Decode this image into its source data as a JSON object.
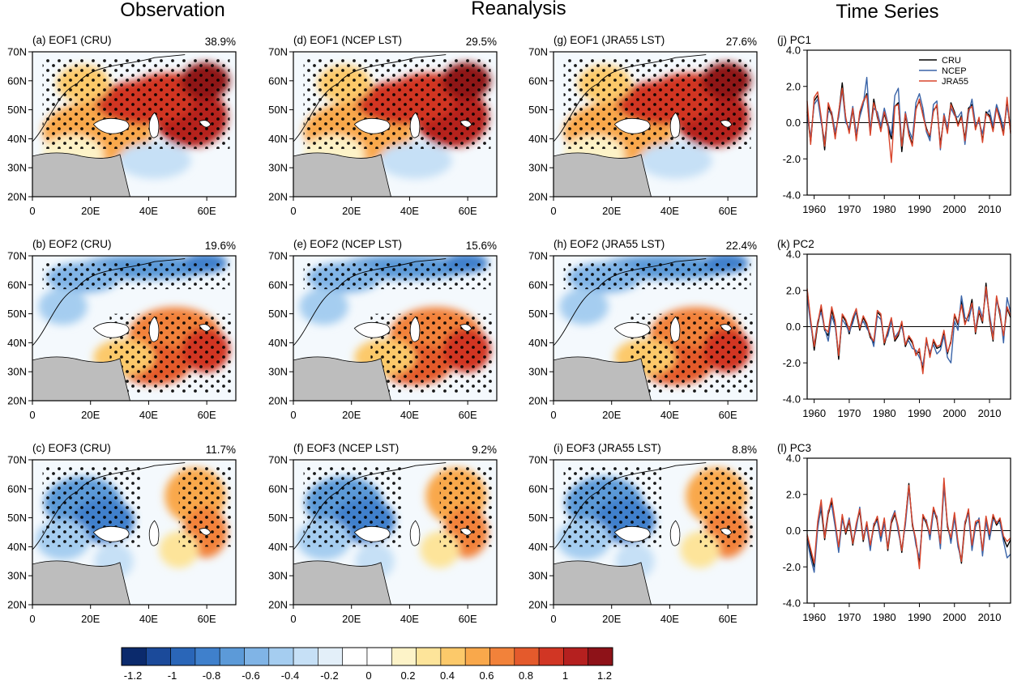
{
  "figure": {
    "column_titles": [
      "Observation",
      "Reanalysis",
      "Time Series"
    ]
  },
  "colorbar": {
    "colors": [
      "#0b2a6c",
      "#1b4a9a",
      "#2a66b8",
      "#3f80cc",
      "#5c9ad8",
      "#80b4e6",
      "#a5cdf0",
      "#c6e0f6",
      "#e3eff9",
      "#ffffff",
      "#ffffff",
      "#fdf3c8",
      "#fde49a",
      "#fcc96a",
      "#f9a84b",
      "#f2823a",
      "#e45a2c",
      "#d13624",
      "#b5201f",
      "#8e1218"
    ],
    "labels": [
      "-1.2",
      "-1",
      "-0.8",
      "-0.6",
      "-0.4",
      "-0.2",
      "0",
      "0.2",
      "0.4",
      "0.6",
      "0.8",
      "1",
      "1.2"
    ]
  },
  "map_axes": {
    "lat_labels": [
      "70N",
      "60N",
      "50N",
      "40N",
      "30N",
      "20N"
    ],
    "lon_labels": [
      "0",
      "20E",
      "40E",
      "60E"
    ]
  },
  "map_panels": [
    {
      "id": "a",
      "title": "(a) EOF1 (CRU)",
      "variance": "38.9%",
      "pattern": "eof1"
    },
    {
      "id": "d",
      "title": "(d) EOF1 (NCEP LST)",
      "variance": "29.5%",
      "pattern": "eof1"
    },
    {
      "id": "g",
      "title": "(g) EOF1 (JRA55 LST)",
      "variance": "27.6%",
      "pattern": "eof1"
    },
    {
      "id": "b",
      "title": "(b) EOF2 (CRU)",
      "variance": "19.6%",
      "pattern": "eof2"
    },
    {
      "id": "e",
      "title": "(e) EOF2 (NCEP LST)",
      "variance": "15.6%",
      "pattern": "eof2"
    },
    {
      "id": "h",
      "title": "(h) EOF2 (JRA55 LST)",
      "variance": "22.4%",
      "pattern": "eof2"
    },
    {
      "id": "c",
      "title": "(c) EOF3 (CRU)",
      "variance": "11.7%",
      "pattern": "eof3"
    },
    {
      "id": "f",
      "title": "(f) EOF3 (NCEP LST)",
      "variance": "9.2%",
      "pattern": "eof3"
    },
    {
      "id": "i",
      "title": "(i) EOF3 (JRA55 LST)",
      "variance": "8.8%",
      "pattern": "eof3"
    }
  ],
  "chart_data": [
    {
      "type": "line",
      "title": "(j) PC1",
      "xlim": [
        1958,
        2016
      ],
      "ylim": [
        -4,
        4
      ],
      "x_ticks": [
        "1960",
        "1970",
        "1980",
        "1990",
        "2000",
        "2010"
      ],
      "y_ticks": [
        "4.0",
        "2.0",
        "0.0",
        "-2.0",
        "-4.0"
      ],
      "legend": [
        "CRU",
        "NCEP",
        "JRA55"
      ],
      "legend_position": "top-right",
      "colors": [
        "#000000",
        "#3a64a8",
        "#d9452b"
      ],
      "x_start": 1958,
      "series": [
        {
          "name": "CRU",
          "values": [
            0.6,
            -1.1,
            1.2,
            1.5,
            0.2,
            -1.5,
            0.9,
            0.4,
            -0.8,
            0.5,
            2.2,
            0.2,
            -0.5,
            0.7,
            -0.9,
            0.5,
            1.1,
            1.6,
            -0.6,
            1.3,
            0.3,
            -0.4,
            0.5,
            -0.2,
            -0.9,
            0.9,
            1.1,
            -1.6,
            0.4,
            -0.6,
            -1.2,
            0.8,
            1.2,
            0.5,
            -0.3,
            -0.8,
            0.7,
            0.9,
            -1.2,
            0.3,
            -0.5,
            1.1,
            0.6,
            -0.1,
            0.4,
            -0.9,
            0.8,
            1.0,
            -0.3,
            0.2,
            -1.0,
            0.6,
            0.4,
            -0.4,
            0.9,
            0.2,
            -0.6,
            1.1,
            -0.5
          ]
        },
        {
          "name": "NCEP",
          "values": [
            0.4,
            -0.8,
            1.0,
            1.3,
            0.0,
            -1.0,
            0.6,
            0.6,
            -0.5,
            0.3,
            1.8,
            0.0,
            -0.3,
            0.9,
            -0.6,
            0.3,
            1.0,
            2.5,
            -0.4,
            0.8,
            0.6,
            -0.2,
            0.8,
            0.0,
            -0.7,
            1.5,
            1.9,
            -1.3,
            0.6,
            -0.4,
            -0.9,
            1.1,
            1.6,
            0.8,
            -0.5,
            -1.0,
            1.0,
            1.2,
            -1.5,
            0.5,
            -0.3,
            0.8,
            0.4,
            0.3,
            0.6,
            -1.2,
            0.5,
            1.3,
            -0.1,
            0.0,
            -0.6,
            0.4,
            0.7,
            -0.2,
            1.0,
            0.4,
            -0.3,
            0.9,
            -0.2
          ]
        },
        {
          "name": "JRA55",
          "values": [
            1.2,
            -1.2,
            1.4,
            1.7,
            0.3,
            -1.3,
            1.1,
            0.5,
            -0.9,
            0.6,
            1.9,
            0.3,
            -0.6,
            0.8,
            -1.0,
            0.6,
            1.2,
            1.5,
            -0.7,
            1.1,
            0.4,
            -0.5,
            0.6,
            -0.1,
            -2.2,
            0.9,
            1.0,
            -1.3,
            0.5,
            -0.7,
            -1.3,
            0.7,
            1.3,
            0.4,
            -0.4,
            -0.7,
            0.6,
            1.0,
            -1.4,
            0.4,
            -0.6,
            1.0,
            0.5,
            -0.2,
            0.3,
            -1.0,
            0.7,
            0.9,
            -0.4,
            0.3,
            -1.1,
            0.5,
            0.3,
            -0.5,
            0.8,
            0.1,
            -0.7,
            1.4,
            -0.6
          ]
        }
      ]
    },
    {
      "type": "line",
      "title": "(k) PC2",
      "xlim": [
        1958,
        2016
      ],
      "ylim": [
        -4,
        4
      ],
      "x_ticks": [
        "1960",
        "1970",
        "1980",
        "1990",
        "2000",
        "2010"
      ],
      "y_ticks": [
        "4.0",
        "2.0",
        "0.0",
        "-2.0",
        "-4.0"
      ],
      "colors": [
        "#000000",
        "#3a64a8",
        "#d9452b"
      ],
      "x_start": 1958,
      "series": [
        {
          "name": "CRU",
          "values": [
            2.0,
            0.3,
            -1.3,
            0.1,
            1.0,
            -0.2,
            -0.5,
            0.9,
            0.2,
            -1.8,
            0.6,
            0.3,
            -0.4,
            0.4,
            0.8,
            -0.2,
            0.5,
            0.1,
            -0.6,
            -0.9,
            0.8,
            0.6,
            -1.0,
            -0.3,
            0.4,
            -0.8,
            -0.5,
            0.2,
            -1.1,
            -0.6,
            -0.9,
            -1.5,
            -1.4,
            -2.4,
            -0.7,
            -1.6,
            -0.8,
            -1.2,
            -1.1,
            -0.3,
            -1.5,
            -0.8,
            0.6,
            0.1,
            1.4,
            0.2,
            0.6,
            1.5,
            -0.4,
            0.8,
            0.2,
            2.4,
            0.4,
            -0.8,
            1.6,
            0.6,
            -0.6,
            1.0,
            0.5
          ]
        },
        {
          "name": "NCEP",
          "values": [
            1.7,
            0.1,
            -1.0,
            0.3,
            0.8,
            -0.1,
            -0.8,
            0.6,
            0.0,
            -1.5,
            0.4,
            0.1,
            -0.3,
            0.2,
            0.9,
            0.0,
            0.3,
            -0.1,
            -0.4,
            -1.1,
            0.6,
            0.4,
            -0.8,
            -0.5,
            0.3,
            -0.6,
            -0.3,
            0.0,
            -0.9,
            -0.8,
            -1.2,
            -1.3,
            -1.7,
            -2.1,
            -0.9,
            -1.4,
            -1.0,
            -1.5,
            -1.3,
            -0.5,
            -1.7,
            -2.0,
            0.3,
            -0.2,
            1.7,
            0.5,
            0.3,
            1.2,
            -0.2,
            1.1,
            0.5,
            1.9,
            0.7,
            -0.5,
            1.4,
            0.9,
            -0.9,
            1.6,
            0.8
          ]
        },
        {
          "name": "JRA55",
          "values": [
            2.1,
            0.4,
            -1.1,
            0.2,
            1.2,
            -0.1,
            -0.3,
            1.1,
            0.3,
            -1.6,
            0.7,
            0.4,
            -0.2,
            0.5,
            1.0,
            -0.1,
            0.6,
            0.2,
            -0.5,
            -0.8,
            0.9,
            0.7,
            -0.9,
            -0.2,
            0.5,
            -0.7,
            -0.4,
            0.3,
            -1.0,
            -0.5,
            -0.8,
            -1.6,
            -1.2,
            -2.6,
            -0.6,
            -1.7,
            -0.7,
            -1.1,
            -1.0,
            -0.2,
            -1.4,
            -0.9,
            0.7,
            0.2,
            1.2,
            0.1,
            0.7,
            1.3,
            -0.3,
            0.9,
            0.3,
            2.2,
            0.5,
            -0.7,
            1.7,
            0.7,
            -0.5,
            1.1,
            0.6
          ]
        }
      ]
    },
    {
      "type": "line",
      "title": "(l) PC3",
      "xlim": [
        1958,
        2016
      ],
      "ylim": [
        -4,
        4
      ],
      "x_ticks": [
        "1960",
        "1970",
        "1980",
        "1990",
        "2000",
        "2010"
      ],
      "y_ticks": [
        "4.0",
        "2.0",
        "0.0",
        "-2.0",
        "-4.0"
      ],
      "colors": [
        "#000000",
        "#3a64a8",
        "#d9452b"
      ],
      "x_start": 1958,
      "series": [
        {
          "name": "CRU",
          "values": [
            -0.3,
            -1.2,
            -2.0,
            0.3,
            1.2,
            -0.5,
            0.9,
            1.6,
            0.4,
            -1.0,
            0.8,
            -0.2,
            0.5,
            -0.8,
            0.3,
            1.1,
            -0.6,
            0.4,
            -0.9,
            0.2,
            0.7,
            -0.4,
            0.6,
            -1.1,
            0.4,
            0.9,
            0.1,
            -1.2,
            0.5,
            2.6,
            0.3,
            -0.6,
            -1.8,
            0.8,
            0.4,
            -0.3,
            1.2,
            0.6,
            -0.8,
            2.7,
            0.2,
            -0.5,
            0.9,
            -0.7,
            -1.8,
            0.3,
            1.1,
            -0.9,
            0.4,
            0.5,
            -1.2,
            0.7,
            -0.3,
            0.8,
            0.3,
            0.6,
            -0.4,
            -0.9,
            -0.5
          ]
        },
        {
          "name": "NCEP",
          "values": [
            -0.5,
            -1.5,
            -2.3,
            0.1,
            1.4,
            -0.3,
            1.1,
            1.4,
            0.2,
            -1.2,
            0.6,
            0.0,
            0.7,
            -0.6,
            0.1,
            1.3,
            -0.4,
            0.2,
            -1.1,
            0.4,
            0.5,
            -0.6,
            0.4,
            -0.9,
            0.6,
            1.1,
            -0.1,
            -1.0,
            0.3,
            2.3,
            0.5,
            -0.8,
            -1.5,
            0.6,
            0.6,
            -0.5,
            1.0,
            0.8,
            -1.0,
            2.4,
            0.4,
            -0.7,
            0.7,
            -0.9,
            -1.6,
            0.5,
            0.9,
            -1.1,
            0.2,
            0.7,
            -1.4,
            0.5,
            -0.5,
            0.6,
            0.5,
            0.4,
            -0.6,
            -1.5,
            -1.3
          ]
        },
        {
          "name": "JRA55",
          "values": [
            -0.2,
            -1.0,
            -1.8,
            0.5,
            1.7,
            -0.4,
            1.0,
            1.8,
            0.5,
            -0.9,
            0.9,
            -0.1,
            0.6,
            -0.7,
            0.4,
            1.2,
            -0.5,
            0.5,
            -0.8,
            0.3,
            0.8,
            -0.3,
            0.7,
            -1.0,
            0.5,
            1.0,
            0.2,
            -1.1,
            0.6,
            2.5,
            0.4,
            -0.5,
            -2.1,
            0.9,
            0.5,
            -0.2,
            1.3,
            0.7,
            -0.7,
            2.9,
            0.3,
            -0.4,
            1.0,
            -0.6,
            -1.7,
            0.4,
            1.2,
            -0.8,
            0.5,
            0.6,
            -1.1,
            0.8,
            -0.2,
            0.9,
            0.4,
            0.7,
            -0.3,
            -0.6,
            -0.4
          ]
        }
      ]
    }
  ]
}
